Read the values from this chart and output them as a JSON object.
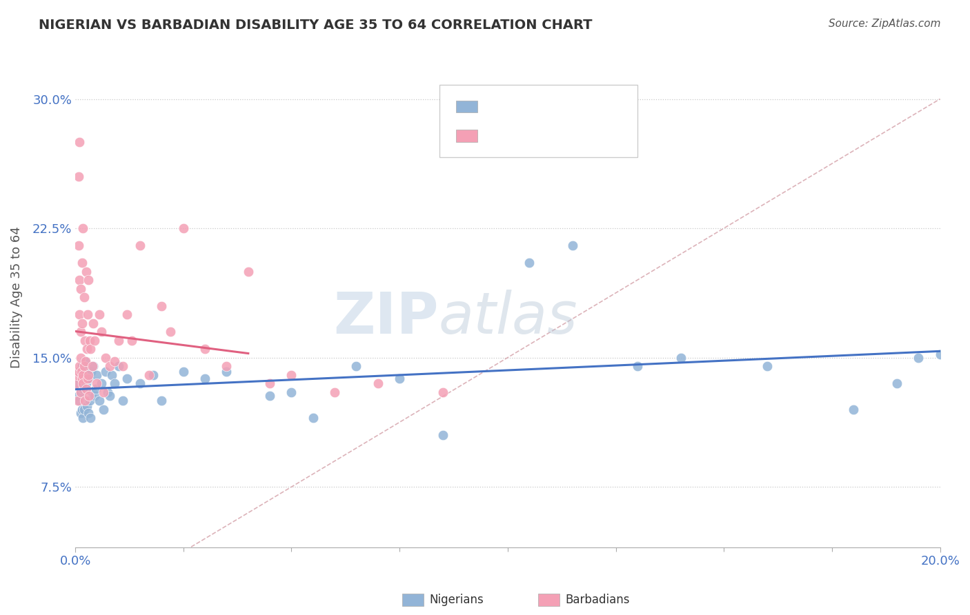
{
  "title": "NIGERIAN VS BARBADIAN DISABILITY AGE 35 TO 64 CORRELATION CHART",
  "source": "Source: ZipAtlas.com",
  "ylabel": "Disability Age 35 to 64",
  "yticks": [
    7.5,
    15.0,
    22.5,
    30.0
  ],
  "ytick_labels": [
    "7.5%",
    "15.0%",
    "22.5%",
    "30.0%"
  ],
  "xlim": [
    0.0,
    20.0
  ],
  "ylim": [
    4.0,
    33.0
  ],
  "nigerian_color": "#92b4d7",
  "barbadian_color": "#f4a0b5",
  "nigerian_line_color": "#4472c4",
  "barbadian_line_color": "#e06080",
  "ref_line_color": "#d4a0a8",
  "watermark_zip": "ZIP",
  "watermark_atlas": "atlas",
  "nigerian_x": [
    0.05,
    0.07,
    0.08,
    0.1,
    0.12,
    0.13,
    0.15,
    0.15,
    0.17,
    0.18,
    0.2,
    0.22,
    0.25,
    0.27,
    0.28,
    0.3,
    0.32,
    0.33,
    0.35,
    0.37,
    0.4,
    0.42,
    0.45,
    0.47,
    0.5,
    0.55,
    0.6,
    0.65,
    0.7,
    0.75,
    0.8,
    0.85,
    0.9,
    1.0,
    1.1,
    1.2,
    1.5,
    1.8,
    2.0,
    2.5,
    3.0,
    3.5,
    4.5,
    5.0,
    5.5,
    6.5,
    7.5,
    8.5,
    10.5,
    11.5,
    13.0,
    14.0,
    16.0,
    18.0,
    19.0,
    19.5,
    20.0
  ],
  "nigerian_y": [
    13.5,
    12.8,
    14.2,
    12.5,
    11.8,
    13.0,
    12.0,
    14.5,
    13.2,
    11.5,
    12.0,
    14.8,
    13.5,
    12.2,
    14.0,
    11.8,
    13.8,
    12.5,
    11.5,
    14.2,
    13.0,
    14.5,
    12.8,
    13.2,
    14.0,
    12.5,
    13.5,
    12.0,
    14.2,
    13.0,
    12.8,
    14.0,
    13.5,
    14.5,
    12.5,
    13.8,
    13.5,
    14.0,
    12.5,
    14.2,
    13.8,
    14.2,
    12.8,
    13.0,
    11.5,
    14.5,
    13.8,
    10.5,
    20.5,
    21.5,
    14.5,
    15.0,
    14.5,
    12.0,
    13.5,
    15.0,
    15.2
  ],
  "barbadian_x": [
    0.03,
    0.05,
    0.06,
    0.07,
    0.08,
    0.08,
    0.09,
    0.1,
    0.1,
    0.1,
    0.12,
    0.12,
    0.13,
    0.13,
    0.14,
    0.15,
    0.15,
    0.16,
    0.17,
    0.18,
    0.18,
    0.2,
    0.2,
    0.22,
    0.22,
    0.23,
    0.25,
    0.25,
    0.27,
    0.28,
    0.28,
    0.3,
    0.3,
    0.32,
    0.33,
    0.35,
    0.4,
    0.42,
    0.45,
    0.5,
    0.55,
    0.6,
    0.65,
    0.7,
    0.8,
    0.9,
    1.0,
    1.1,
    1.2,
    1.3,
    1.5,
    1.7,
    2.0,
    2.2,
    2.5,
    3.0,
    3.5,
    4.0,
    4.5,
    5.0,
    6.0,
    7.0,
    8.5
  ],
  "barbadian_y": [
    13.5,
    14.0,
    12.5,
    25.5,
    14.2,
    21.5,
    19.5,
    14.5,
    17.5,
    27.5,
    13.0,
    16.5,
    15.0,
    19.0,
    14.2,
    13.8,
    20.5,
    17.0,
    14.0,
    13.5,
    22.5,
    14.5,
    18.5,
    12.5,
    16.0,
    14.8,
    13.2,
    20.0,
    15.5,
    13.8,
    17.5,
    14.0,
    19.5,
    12.8,
    16.0,
    15.5,
    14.5,
    17.0,
    16.0,
    13.5,
    17.5,
    16.5,
    13.0,
    15.0,
    14.5,
    14.8,
    16.0,
    14.5,
    17.5,
    16.0,
    21.5,
    14.0,
    18.0,
    16.5,
    22.5,
    15.5,
    14.5,
    20.0,
    13.5,
    14.0,
    13.0,
    13.5,
    13.0
  ],
  "ref_line_x": [
    0.0,
    20.0
  ],
  "ref_line_y": [
    0.0,
    30.0
  ]
}
